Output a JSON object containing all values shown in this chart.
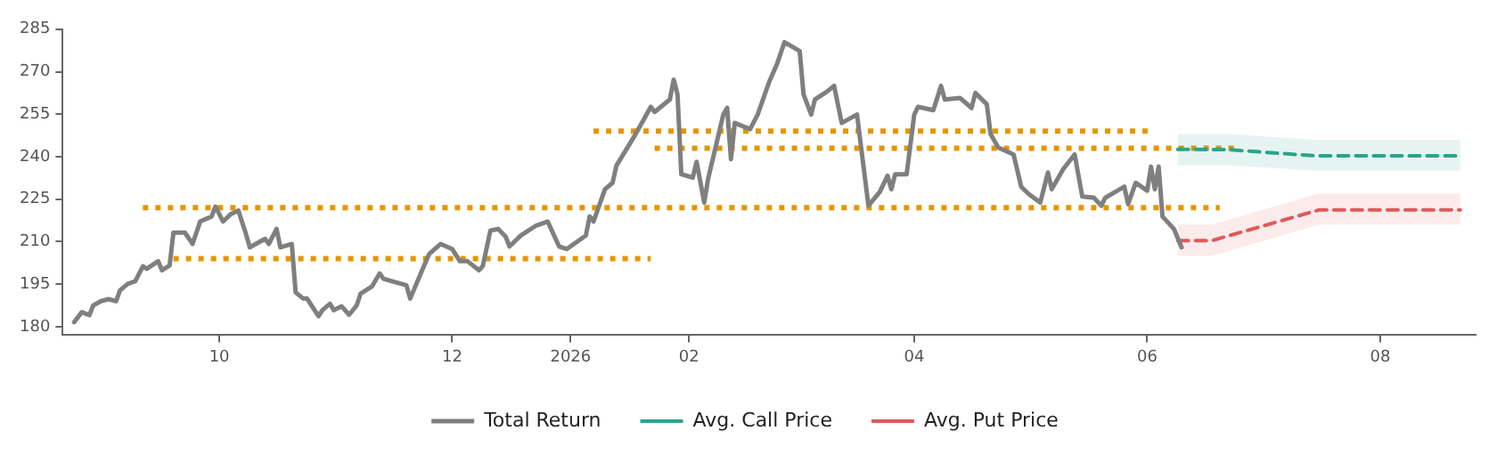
{
  "chart_data": {
    "type": "line",
    "xlim": [
      "2025-08-21",
      "2026-08-26"
    ],
    "xticks": [
      {
        "value": "2025-10-01",
        "label": "10"
      },
      {
        "value": "2025-12-01",
        "label": "12"
      },
      {
        "value": "2026-01-01",
        "label": "2026"
      },
      {
        "value": "2026-02-01",
        "label": "02"
      },
      {
        "value": "2026-04-01",
        "label": "04"
      },
      {
        "value": "2026-06-01",
        "label": "06"
      },
      {
        "value": "2026-08-01",
        "label": "08"
      }
    ],
    "ylim": [
      177,
      285
    ],
    "yticks": [
      180,
      195,
      210,
      225,
      240,
      255,
      270,
      285
    ],
    "legend": "bottom",
    "series": [
      {
        "name": "Total Return",
        "color": "#7f7f7f",
        "line_style": "solid",
        "x": [
          "2025-08-24",
          "2025-08-26",
          "2025-08-28",
          "2025-08-29",
          "2025-08-31",
          "2025-09-02",
          "2025-09-04",
          "2025-09-05",
          "2025-09-07",
          "2025-09-09",
          "2025-09-11",
          "2025-09-12",
          "2025-09-15",
          "2025-09-16",
          "2025-09-18",
          "2025-09-19",
          "2025-09-22",
          "2025-09-24",
          "2025-09-26",
          "2025-09-29",
          "2025-09-30",
          "2025-10-02",
          "2025-10-04",
          "2025-10-06",
          "2025-10-08",
          "2025-10-09",
          "2025-10-13",
          "2025-10-14",
          "2025-10-16",
          "2025-10-17",
          "2025-10-20",
          "2025-10-21",
          "2025-10-23",
          "2025-10-24",
          "2025-10-27",
          "2025-10-28",
          "2025-10-30",
          "2025-10-31",
          "2025-11-02",
          "2025-11-04",
          "2025-11-06",
          "2025-11-07",
          "2025-11-10",
          "2025-11-12",
          "2025-11-13",
          "2025-11-19",
          "2025-11-20",
          "2025-11-23",
          "2025-11-25",
          "2025-11-28",
          "2025-12-01",
          "2025-12-03",
          "2025-12-05",
          "2025-12-08",
          "2025-12-09",
          "2025-12-11",
          "2025-12-13",
          "2025-12-15",
          "2025-12-16",
          "2025-12-19",
          "2025-12-23",
          "2025-12-26",
          "2025-12-29",
          "2025-12-31",
          "2026-01-05",
          "2026-01-06",
          "2026-01-07",
          "2026-01-10",
          "2026-01-12",
          "2026-01-13",
          "2026-01-18",
          "2026-01-20",
          "2026-01-22",
          "2026-01-23",
          "2026-01-27",
          "2026-01-28",
          "2026-01-29",
          "2026-01-30",
          "2026-02-02",
          "2026-02-03",
          "2026-02-05",
          "2026-02-06",
          "2026-02-10",
          "2026-02-11",
          "2026-02-12",
          "2026-02-13",
          "2026-02-17",
          "2026-02-19",
          "2026-02-22",
          "2026-02-24",
          "2026-02-26",
          "2026-03-02",
          "2026-03-03",
          "2026-03-05",
          "2026-03-06",
          "2026-03-09",
          "2026-03-11",
          "2026-03-13",
          "2026-03-17",
          "2026-03-20",
          "2026-03-23",
          "2026-03-25",
          "2026-03-26",
          "2026-03-27",
          "2026-03-30",
          "2026-04-01",
          "2026-04-02",
          "2026-04-06",
          "2026-04-08",
          "2026-04-09",
          "2026-04-13",
          "2026-04-16",
          "2026-04-17",
          "2026-04-20",
          "2026-04-21",
          "2026-04-23",
          "2026-04-27",
          "2026-04-29",
          "2026-05-01",
          "2026-05-04",
          "2026-05-06",
          "2026-05-07",
          "2026-05-10",
          "2026-05-13",
          "2026-05-15",
          "2026-05-18",
          "2026-05-20",
          "2026-05-21",
          "2026-05-26",
          "2026-05-27",
          "2026-05-29",
          "2026-06-01",
          "2026-06-02",
          "2026-06-03",
          "2026-06-04",
          "2026-06-05",
          "2026-06-08",
          "2026-06-10"
        ],
        "values": [
          181.6,
          185.1,
          184.1,
          187.5,
          189.0,
          189.7,
          189.0,
          192.8,
          195.1,
          196.0,
          201.3,
          200.4,
          203.1,
          199.9,
          201.6,
          213.2,
          213.2,
          209.2,
          217.1,
          218.9,
          222.4,
          217.1,
          219.7,
          221.0,
          212.7,
          208.0,
          211.0,
          209.2,
          214.5,
          208.0,
          209.2,
          192.1,
          189.9,
          189.9,
          183.7,
          185.8,
          188.1,
          185.8,
          187.2,
          184.2,
          187.5,
          191.6,
          194.2,
          198.8,
          196.9,
          194.6,
          189.9,
          199.5,
          205.7,
          209.2,
          207.4,
          203.1,
          203.1,
          199.9,
          201.3,
          213.9,
          214.5,
          211.8,
          208.3,
          212.2,
          215.7,
          217.1,
          208.3,
          207.4,
          212.2,
          218.9,
          217.1,
          228.5,
          230.8,
          236.8,
          247.9,
          252.7,
          257.6,
          255.8,
          260.2,
          267.2,
          262.0,
          233.8,
          232.6,
          238.2,
          223.8,
          232.1,
          254.9,
          257.2,
          239.1,
          251.9,
          249.7,
          254.9,
          266.4,
          272.5,
          280.4,
          277.3,
          262.0,
          254.9,
          260.2,
          262.8,
          265.0,
          251.9,
          254.9,
          222.7,
          227.6,
          233.3,
          228.5,
          233.8,
          233.8,
          254.9,
          257.6,
          256.4,
          265.0,
          260.2,
          260.7,
          257.2,
          262.5,
          258.5,
          247.9,
          243.2,
          240.8,
          229.4,
          226.8,
          223.8,
          234.4,
          228.5,
          235.6,
          240.8,
          225.9,
          225.5,
          222.7,
          225.5,
          229.4,
          223.3,
          230.8,
          228.0,
          236.5,
          228.5,
          236.5,
          218.9,
          214.5,
          208.0
        ]
      },
      {
        "name": "Avg. Call Price",
        "color": "#2aa58a",
        "line_style": "dashed",
        "x": [
          "2026-06-09",
          "2026-06-22",
          "2026-07-15",
          "2026-08-22"
        ],
        "values": [
          242.6,
          242.5,
          240.3,
          240.3
        ],
        "lower": [
          237,
          237,
          235,
          235
        ],
        "upper": [
          248,
          248,
          246,
          246
        ]
      },
      {
        "name": "Avg. Put Price",
        "color": "#e05a5a",
        "line_style": "dashed",
        "x": [
          "2026-06-09",
          "2026-06-18",
          "2026-07-16",
          "2026-08-22"
        ],
        "values": [
          210.4,
          210.4,
          221.2,
          221.2
        ],
        "lower": [
          205,
          205,
          216,
          216
        ],
        "upper": [
          216,
          216,
          227,
          227
        ]
      },
      {
        "color": "#e69500",
        "line_style": "dotted",
        "x": [
          "2025-09-11",
          "2026-06-20"
        ],
        "values": [
          222,
          222
        ]
      },
      {
        "color": "#e69500",
        "line_style": "dotted",
        "x": [
          "2025-09-19",
          "2026-01-22"
        ],
        "values": [
          204,
          204
        ]
      },
      {
        "color": "#e69500",
        "line_style": "dotted",
        "x": [
          "2026-01-07",
          "2026-06-02"
        ],
        "values": [
          249,
          249
        ]
      },
      {
        "color": "#e69500",
        "line_style": "dotted",
        "x": [
          "2026-01-23",
          "2026-06-24"
        ],
        "values": [
          243,
          243
        ]
      }
    ]
  }
}
